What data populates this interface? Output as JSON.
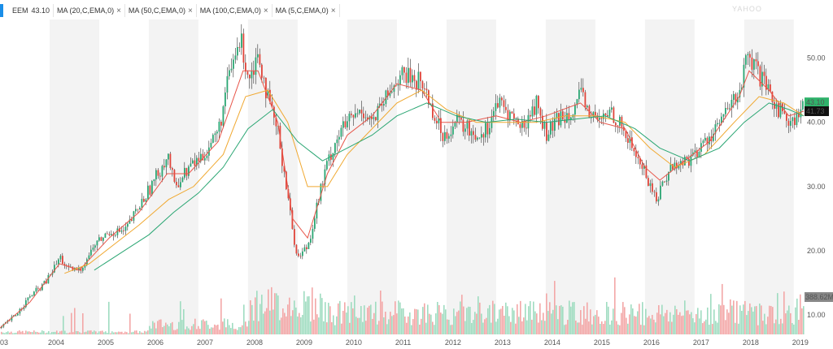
{
  "legend": {
    "symbol": "EEM",
    "price": "43.10",
    "indicators": [
      {
        "label": "MA (20,C,EMA,0)",
        "color": "#e8564a"
      },
      {
        "label": "MA (50,C,EMA,0)",
        "color": "#f0a830"
      },
      {
        "label": "MA (100,C,EMA,0)",
        "color": "#2aa673"
      },
      {
        "label": "MA (5,C,EMA,0)",
        "color": "#222222"
      }
    ],
    "close_glyph": "×"
  },
  "watermark": "YAHOO",
  "badges": {
    "last_price": "43.10",
    "ma_value": "41.73",
    "volume": "388.62M",
    "colors": {
      "last_price": "#2fb36b",
      "ma_value": "#111111",
      "volume": "#888888"
    }
  },
  "chart_data": {
    "type": "line",
    "title": "",
    "xlabel": "",
    "ylabel": "",
    "x_tick_labels": [
      "03",
      "2004",
      "2005",
      "2006",
      "2007",
      "2008",
      "2009",
      "2010",
      "2011",
      "2012",
      "2013",
      "2014",
      "2015",
      "2016",
      "2017",
      "2018",
      "2019"
    ],
    "y_tick_labels": [
      "50.00",
      "40.00",
      "30.00",
      "20.00",
      "10.00"
    ],
    "y_ticks": [
      50,
      40,
      30,
      20,
      10
    ],
    "ylim": [
      7,
      56
    ],
    "xlim": [
      2003.0,
      2019.2
    ],
    "grid": "alternating year bands",
    "price_series": {
      "name": "EEM",
      "x": [
        2003.0,
        2003.3,
        2003.6,
        2003.9,
        2004.2,
        2004.35,
        2004.6,
        2004.9,
        2005.2,
        2005.5,
        2005.8,
        2006.1,
        2006.37,
        2006.5,
        2006.8,
        2007.1,
        2007.4,
        2007.6,
        2007.83,
        2008.0,
        2008.2,
        2008.4,
        2008.6,
        2008.8,
        2008.9,
        2009.0,
        2009.2,
        2009.4,
        2009.6,
        2009.8,
        2010.0,
        2010.3,
        2010.5,
        2010.8,
        2011.0,
        2011.3,
        2011.5,
        2011.7,
        2011.9,
        2012.2,
        2012.4,
        2012.6,
        2012.8,
        2013.0,
        2013.3,
        2013.5,
        2013.8,
        2014.0,
        2014.3,
        2014.5,
        2014.7,
        2014.9,
        2015.1,
        2015.3,
        2015.6,
        2015.8,
        2016.0,
        2016.2,
        2016.5,
        2016.8,
        2017.0,
        2017.3,
        2017.6,
        2017.9,
        2018.05,
        2018.3,
        2018.5,
        2018.8,
        2019.0,
        2019.2
      ],
      "values": [
        8,
        10,
        13,
        15,
        19,
        17,
        17,
        21,
        23,
        23,
        27,
        31,
        35,
        30,
        33,
        35,
        39,
        47,
        53,
        47,
        51,
        43,
        38,
        28,
        22,
        19,
        21,
        28,
        34,
        38,
        40,
        42,
        40,
        44,
        47,
        47,
        46,
        42,
        38,
        40,
        39,
        38,
        39,
        43,
        41,
        39,
        43,
        38,
        41,
        42,
        44,
        41,
        40,
        42,
        38,
        35,
        32,
        28,
        33,
        34,
        35,
        38,
        41,
        45,
        50,
        47,
        44,
        41,
        40,
        43
      ]
    },
    "ma_series": [
      {
        "name": "MA (20,C,EMA,0)",
        "x": [
          2003.0,
          2003.6,
          2004.2,
          2004.6,
          2005.2,
          2005.8,
          2006.37,
          2006.8,
          2007.4,
          2007.9,
          2008.2,
          2008.6,
          2008.9,
          2009.2,
          2009.6,
          2010.0,
          2010.5,
          2011.0,
          2011.5,
          2011.9,
          2012.4,
          2013.0,
          2013.5,
          2014.0,
          2014.7,
          2015.1,
          2015.6,
          2016.0,
          2016.3,
          2016.8,
          2017.3,
          2017.9,
          2018.1,
          2018.5,
          2018.9,
          2019.2
        ],
        "values": [
          8,
          12,
          18,
          17,
          22,
          26,
          32,
          32,
          37,
          48,
          48,
          40,
          25,
          22,
          32,
          38,
          41,
          46,
          45,
          40,
          40,
          41,
          40,
          41,
          43,
          40,
          39,
          33,
          31,
          34,
          37,
          44,
          48,
          45,
          41,
          41.73
        ]
      },
      {
        "name": "MA (50,C,EMA,0)",
        "x": [
          2004.3,
          2004.8,
          2005.3,
          2005.8,
          2006.4,
          2006.9,
          2007.5,
          2007.95,
          2008.4,
          2008.8,
          2009.2,
          2009.6,
          2010.0,
          2010.5,
          2011.0,
          2011.5,
          2012.0,
          2012.6,
          2013.2,
          2013.8,
          2014.4,
          2015.0,
          2015.6,
          2016.1,
          2016.6,
          2017.2,
          2017.8,
          2018.3,
          2018.8,
          2019.2
        ],
        "values": [
          16.5,
          18,
          21,
          24,
          28,
          30,
          35,
          44,
          45,
          40,
          30,
          30,
          35,
          39,
          43,
          45,
          42,
          40,
          40,
          40,
          41,
          41,
          40,
          36,
          33,
          35,
          40,
          44,
          43,
          41
        ]
      },
      {
        "name": "MA (100,C,EMA,0)",
        "x": [
          2004.9,
          2005.5,
          2006.0,
          2006.5,
          2007.0,
          2007.5,
          2008.0,
          2008.5,
          2009.0,
          2009.5,
          2010.0,
          2010.5,
          2011.0,
          2011.6,
          2012.2,
          2012.8,
          2013.4,
          2014.0,
          2014.6,
          2015.2,
          2015.8,
          2016.3,
          2016.9,
          2017.5,
          2018.0,
          2018.5,
          2018.9,
          2019.2
        ],
        "values": [
          17,
          20,
          22.5,
          26,
          29,
          33,
          39,
          42,
          37,
          34,
          36,
          38,
          41,
          43,
          41,
          40,
          40.5,
          40,
          40.5,
          41,
          39,
          36,
          34,
          36,
          40,
          43,
          42,
          41
        ]
      }
    ],
    "volume_ylim": [
      0,
      500
    ]
  }
}
